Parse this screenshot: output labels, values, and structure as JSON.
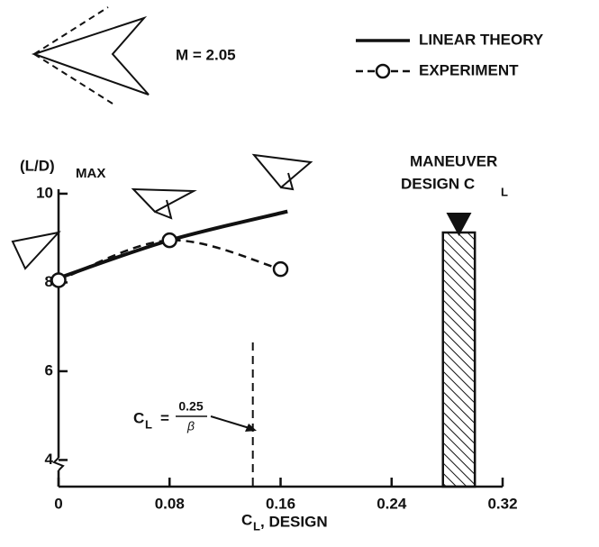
{
  "chart_data": {
    "type": "line",
    "title": "M = 2.05",
    "x_label": {
      "main": "C",
      "sub": "L",
      "rest": ", DESIGN"
    },
    "y_label": {
      "main": "(L/D)",
      "sub": "MAX"
    },
    "xlim": [
      0,
      0.32
    ],
    "ylim": [
      3.4,
      10.1
    ],
    "xticks": [
      0,
      0.08,
      0.16,
      0.24,
      0.32
    ],
    "yticks": [
      4,
      6,
      8,
      10
    ],
    "series": [
      {
        "name": "LINEAR THEORY",
        "color": "#111111",
        "style": "solid",
        "markers": false,
        "x": [
          0,
          0.08,
          0.165
        ],
        "values": [
          8.1,
          8.95,
          9.6
        ]
      },
      {
        "name": "EXPERIMENT",
        "color": "#111111",
        "style": "dashed",
        "markers": true,
        "x": [
          0,
          0.08,
          0.16
        ],
        "values": [
          8.05,
          8.95,
          8.3
        ]
      }
    ],
    "limit_line": {
      "x": 0.14,
      "label": {
        "main": "C",
        "sub": "L",
        "eq": "=",
        "num": "0.25",
        "den": "β"
      }
    },
    "maneuver_band": {
      "x": [
        0.277,
        0.3
      ],
      "label": {
        "line1": "MANEUVER",
        "line2": "DESIGN C",
        "sub": "L"
      }
    }
  }
}
